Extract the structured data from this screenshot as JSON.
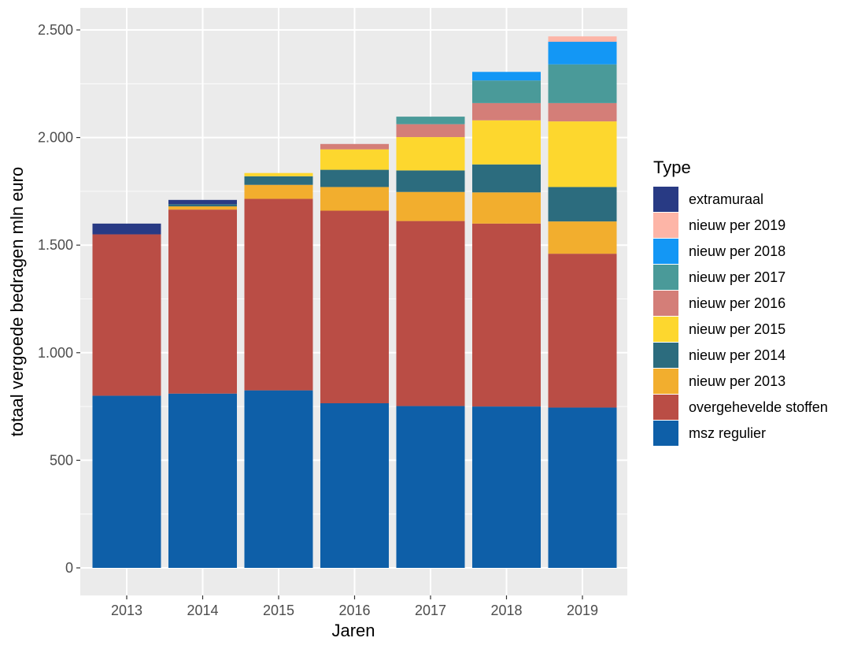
{
  "chart_data": {
    "type": "bar",
    "stacked": true,
    "categories": [
      "2013",
      "2014",
      "2015",
      "2016",
      "2017",
      "2018",
      "2019"
    ],
    "xlabel": "Jaren",
    "ylabel": "totaal vergoede bedragen mln euro",
    "ylim": [
      0,
      2500
    ],
    "yticks": [
      0,
      500,
      1000,
      1500,
      2000,
      2500
    ],
    "ytick_labels": [
      "0",
      "500",
      "1.000",
      "1.500",
      "2.000",
      "2.500"
    ],
    "grid": true,
    "legend": {
      "title": "Type",
      "placement": "right"
    },
    "series": [
      {
        "name": "msz regulier",
        "color": "#0E5FA8",
        "values": [
          800,
          810,
          825,
          765,
          752,
          750,
          745
        ]
      },
      {
        "name": "overgehevelde stoffen",
        "color": "#BA4D45",
        "values": [
          750,
          855,
          890,
          895,
          860,
          850,
          715
        ]
      },
      {
        "name": "nieuw per 2013",
        "color": "#F2AE2E",
        "values": [
          0,
          15,
          65,
          110,
          135,
          145,
          150
        ]
      },
      {
        "name": "nieuw per 2014",
        "color": "#2C6C7E",
        "values": [
          0,
          10,
          40,
          80,
          100,
          130,
          160
        ]
      },
      {
        "name": "nieuw per 2015",
        "color": "#FDD72E",
        "values": [
          0,
          0,
          15,
          95,
          155,
          205,
          305
        ]
      },
      {
        "name": "nieuw per 2016",
        "color": "#D47E78",
        "values": [
          0,
          0,
          0,
          25,
          60,
          80,
          85
        ]
      },
      {
        "name": "nieuw per 2017",
        "color": "#4A9A99",
        "values": [
          0,
          0,
          0,
          0,
          35,
          105,
          180
        ]
      },
      {
        "name": "nieuw per 2018",
        "color": "#1397F5",
        "values": [
          0,
          0,
          0,
          0,
          0,
          40,
          105
        ]
      },
      {
        "name": "nieuw per 2019",
        "color": "#FDB5A7",
        "values": [
          0,
          0,
          0,
          0,
          0,
          0,
          25
        ]
      },
      {
        "name": "extramuraal",
        "color": "#283A84",
        "values": [
          50,
          20,
          0,
          0,
          0,
          0,
          0
        ]
      }
    ]
  }
}
